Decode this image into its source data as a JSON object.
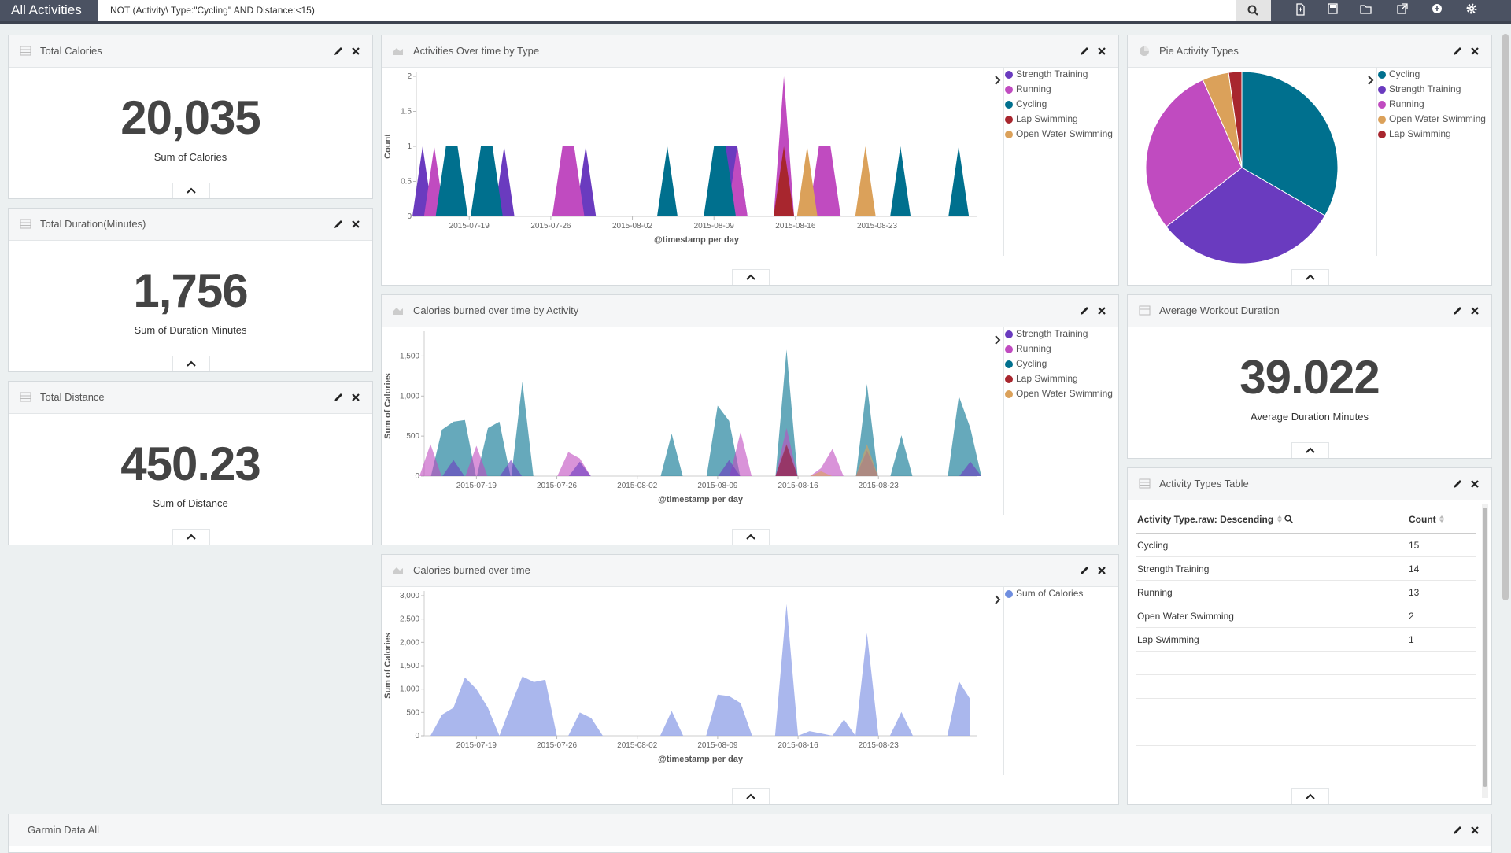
{
  "app": {
    "title": "All Activities",
    "query": "NOT (Activity\\ Type:\"Cycling\" AND Distance:<15)"
  },
  "toolbar": {
    "icons": [
      "new-dashboard-icon",
      "save-icon",
      "open-icon",
      "share-icon",
      "add-panel-icon",
      "settings-icon"
    ]
  },
  "colors": {
    "strength_training": "#6a3bbf",
    "running": "#c04bc0",
    "cycling": "#00708e",
    "lap_swimming": "#a8262e",
    "open_water_swimming": "#dba15a",
    "sum_of_calories": "#95a5e8"
  },
  "panels": {
    "total_calories": {
      "title": "Total Calories",
      "value": "20,035",
      "label": "Sum of Calories"
    },
    "total_duration": {
      "title": "Total Duration(Minutes)",
      "value": "1,756",
      "label": "Sum of Duration Minutes"
    },
    "total_distance": {
      "title": "Total Distance",
      "value": "450.23",
      "label": "Sum of Distance"
    },
    "activities_over_time": {
      "title": "Activities Over time by Type"
    },
    "calories_by_activity": {
      "title": "Calories burned over time by Activity"
    },
    "calories_over_time": {
      "title": "Calories burned over time"
    },
    "pie_activity_types": {
      "title": "Pie Activity Types"
    },
    "avg_workout": {
      "title": "Average Workout Duration",
      "value": "39.022",
      "label": "Average Duration Minutes"
    },
    "types_table": {
      "title": "Activity Types Table",
      "col1": "Activity Type.raw: Descending",
      "col2": "Count",
      "rows": [
        {
          "type": "Cycling",
          "count": "15"
        },
        {
          "type": "Strength Training",
          "count": "14"
        },
        {
          "type": "Running",
          "count": "13"
        },
        {
          "type": "Open Water Swimming",
          "count": "2"
        },
        {
          "type": "Lap Swimming",
          "count": "1"
        }
      ]
    },
    "garmin_data": {
      "title": "Garmin Data All"
    }
  },
  "chart_data": [
    {
      "id": "activities-over-time",
      "type": "area",
      "x_ticks": [
        "2015-07-19",
        "2015-07-26",
        "2015-08-02",
        "2015-08-09",
        "2015-08-16",
        "2015-08-23"
      ],
      "xlabel": "@timestamp per day",
      "ylabel": "Count",
      "ylim": [
        0,
        2
      ],
      "y_ticks": [
        "0",
        "0.5",
        "1",
        "1.5",
        "2"
      ],
      "legend": [
        "Strength Training",
        "Running",
        "Cycling",
        "Lap Swimming",
        "Open Water Swimming"
      ],
      "legend_position": "right",
      "series": [
        {
          "name": "Strength Training",
          "points": [
            [
              "2015-07-15",
              1
            ],
            [
              "2015-07-22",
              1
            ],
            [
              "2015-07-29",
              1
            ],
            [
              "2015-08-10",
              1
            ],
            [
              "2015-08-11",
              1
            ]
          ]
        },
        {
          "name": "Running",
          "points": [
            [
              "2015-07-16",
              1
            ],
            [
              "2015-07-27",
              1
            ],
            [
              "2015-07-28",
              1
            ],
            [
              "2015-08-11",
              1
            ],
            [
              "2015-08-15",
              2
            ],
            [
              "2015-08-18",
              1
            ],
            [
              "2015-08-19",
              1
            ]
          ]
        },
        {
          "name": "Cycling",
          "points": [
            [
              "2015-07-17",
              1
            ],
            [
              "2015-07-18",
              1
            ],
            [
              "2015-07-20",
              1
            ],
            [
              "2015-07-21",
              1
            ],
            [
              "2015-08-05",
              1
            ],
            [
              "2015-08-09",
              1
            ],
            [
              "2015-08-10",
              1
            ],
            [
              "2015-08-25",
              1
            ],
            [
              "2015-08-30",
              1
            ]
          ]
        },
        {
          "name": "Lap Swimming",
          "points": [
            [
              "2015-08-15",
              1
            ]
          ]
        },
        {
          "name": "Open Water Swimming",
          "points": [
            [
              "2015-08-17",
              1
            ],
            [
              "2015-08-22",
              1
            ]
          ]
        }
      ]
    },
    {
      "id": "calories-by-activity",
      "type": "area",
      "x_ticks": [
        "2015-07-19",
        "2015-07-26",
        "2015-08-02",
        "2015-08-09",
        "2015-08-16",
        "2015-08-23"
      ],
      "xlabel": "@timestamp per day",
      "ylabel": "Sum of Calories",
      "ylim": [
        0,
        1750
      ],
      "y_ticks": [
        "0",
        "500",
        "1,000",
        "1,500"
      ],
      "legend": [
        "Strength Training",
        "Running",
        "Cycling",
        "Lap Swimming",
        "Open Water Swimming"
      ],
      "legend_position": "right",
      "series": [
        {
          "name": "Cycling",
          "points": [
            [
              "2015-07-16",
              580
            ],
            [
              "2015-07-17",
              680
            ],
            [
              "2015-07-18",
              700
            ],
            [
              "2015-07-20",
              600
            ],
            [
              "2015-07-21",
              680
            ],
            [
              "2015-07-23",
              1180
            ],
            [
              "2015-08-05",
              530
            ],
            [
              "2015-08-09",
              880
            ],
            [
              "2015-08-10",
              690
            ],
            [
              "2015-08-15",
              1580
            ],
            [
              "2015-08-22",
              1150
            ],
            [
              "2015-08-25",
              510
            ],
            [
              "2015-08-30",
              1000
            ],
            [
              "2015-08-31",
              600
            ]
          ]
        },
        {
          "name": "Running",
          "points": [
            [
              "2015-07-15",
              400
            ],
            [
              "2015-07-19",
              380
            ],
            [
              "2015-07-27",
              300
            ],
            [
              "2015-07-28",
              220
            ],
            [
              "2015-08-11",
              550
            ],
            [
              "2015-08-15",
              600
            ],
            [
              "2015-08-18",
              100
            ],
            [
              "2015-08-19",
              340
            ]
          ]
        },
        {
          "name": "Strength Training",
          "points": [
            [
              "2015-07-17",
              200
            ],
            [
              "2015-07-22",
              200
            ],
            [
              "2015-07-28",
              180
            ],
            [
              "2015-08-10",
              200
            ],
            [
              "2015-08-15",
              380
            ],
            [
              "2015-08-22",
              320
            ],
            [
              "2015-08-31",
              180
            ]
          ]
        },
        {
          "name": "Lap Swimming",
          "points": [
            [
              "2015-08-15",
              400
            ]
          ]
        },
        {
          "name": "Open Water Swimming",
          "points": [
            [
              "2015-08-18",
              60
            ],
            [
              "2015-08-22",
              400
            ]
          ]
        }
      ]
    },
    {
      "id": "calories-over-time",
      "type": "area",
      "x_ticks": [
        "2015-07-19",
        "2015-07-26",
        "2015-08-02",
        "2015-08-09",
        "2015-08-16",
        "2015-08-23"
      ],
      "xlabel": "@timestamp per day",
      "ylabel": "Sum of Calories",
      "ylim": [
        0,
        3000
      ],
      "y_ticks": [
        "0",
        "500",
        "1,000",
        "1,500",
        "2,000",
        "2,500",
        "3,000"
      ],
      "legend": [
        "Sum of Calories"
      ],
      "legend_position": "right",
      "series": [
        {
          "name": "Sum of Calories",
          "points": [
            [
              "2015-07-15",
              0
            ],
            [
              "2015-07-16",
              450
            ],
            [
              "2015-07-17",
              600
            ],
            [
              "2015-07-18",
              1250
            ],
            [
              "2015-07-19",
              1000
            ],
            [
              "2015-07-20",
              600
            ],
            [
              "2015-07-21",
              0
            ],
            [
              "2015-07-22",
              650
            ],
            [
              "2015-07-23",
              1270
            ],
            [
              "2015-07-24",
              1150
            ],
            [
              "2015-07-25",
              1200
            ],
            [
              "2015-07-26",
              0
            ],
            [
              "2015-07-27",
              0
            ],
            [
              "2015-07-28",
              500
            ],
            [
              "2015-07-29",
              380
            ],
            [
              "2015-07-30",
              0
            ],
            [
              "2015-08-04",
              0
            ],
            [
              "2015-08-05",
              530
            ],
            [
              "2015-08-06",
              0
            ],
            [
              "2015-08-08",
              0
            ],
            [
              "2015-08-09",
              880
            ],
            [
              "2015-08-10",
              850
            ],
            [
              "2015-08-11",
              700
            ],
            [
              "2015-08-12",
              0
            ],
            [
              "2015-08-14",
              0
            ],
            [
              "2015-08-15",
              2820
            ],
            [
              "2015-08-16",
              0
            ],
            [
              "2015-08-17",
              100
            ],
            [
              "2015-08-18",
              50
            ],
            [
              "2015-08-19",
              0
            ],
            [
              "2015-08-20",
              350
            ],
            [
              "2015-08-21",
              0
            ],
            [
              "2015-08-22",
              2200
            ],
            [
              "2015-08-23",
              0
            ],
            [
              "2015-08-24",
              0
            ],
            [
              "2015-08-25",
              510
            ],
            [
              "2015-08-26",
              0
            ],
            [
              "2015-08-29",
              0
            ],
            [
              "2015-08-30",
              1170
            ],
            [
              "2015-08-31",
              780
            ]
          ]
        }
      ]
    },
    {
      "id": "pie-activity-types",
      "type": "pie",
      "categories": [
        "Cycling",
        "Strength Training",
        "Running",
        "Open Water Swimming",
        "Lap Swimming"
      ],
      "values": [
        15,
        14,
        13,
        2,
        1
      ],
      "legend_position": "right"
    }
  ]
}
